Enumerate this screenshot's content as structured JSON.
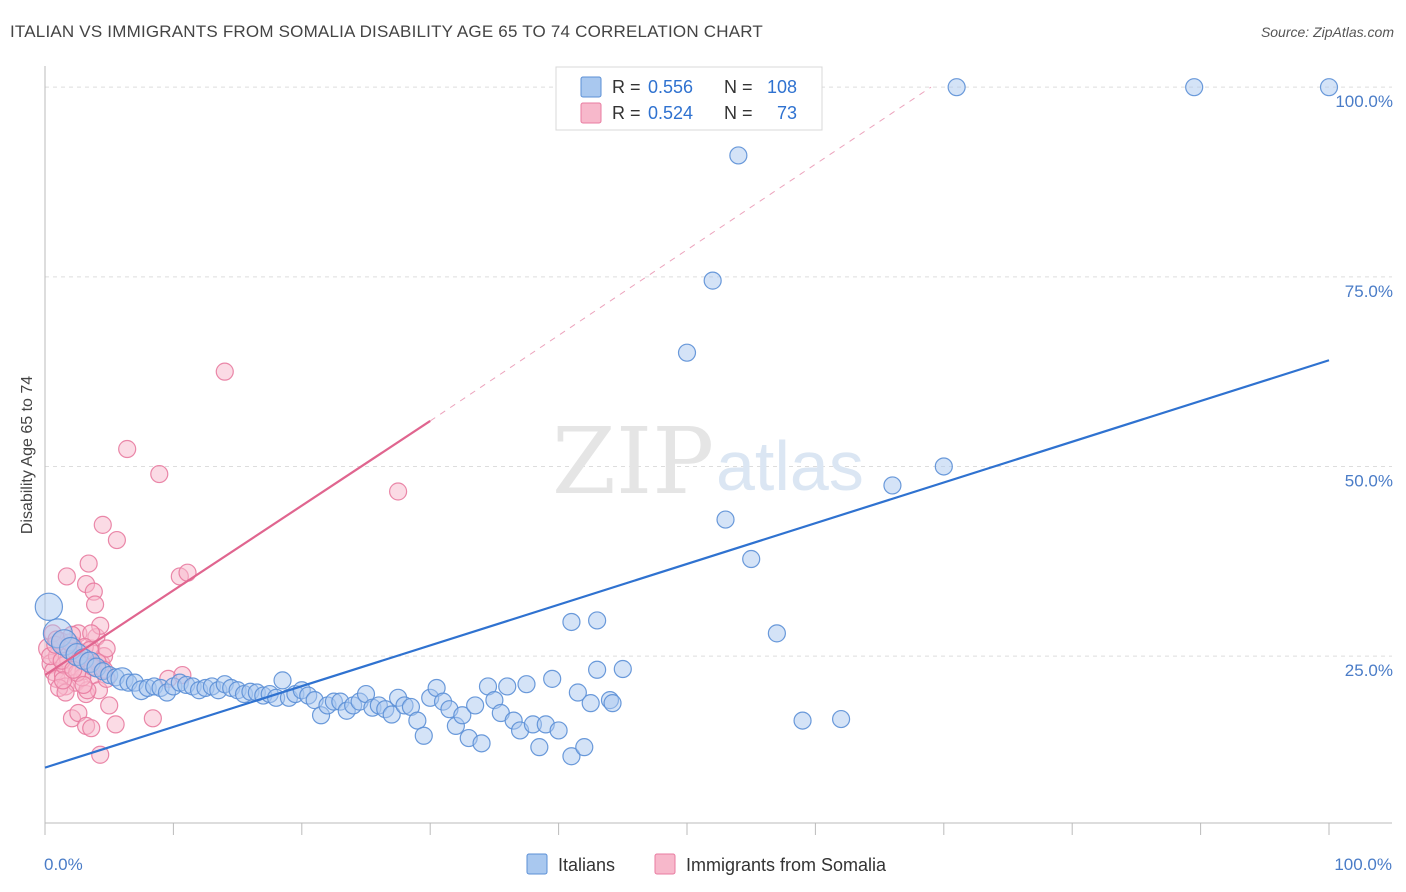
{
  "title": "ITALIAN VS IMMIGRANTS FROM SOMALIA DISABILITY AGE 65 TO 74 CORRELATION CHART",
  "source": "Source: ZipAtlas.com",
  "watermark": {
    "zip": "ZIP",
    "atlas": "atlas"
  },
  "colors": {
    "blue_fill": "#a9c8ef",
    "blue_stroke": "#5b8fd6",
    "blue_line": "#2f72d0",
    "pink_fill": "#f7b8cb",
    "pink_stroke": "#e87ba0",
    "pink_line": "#e0658f",
    "axis_text": "#4a7cc7",
    "grid": "#dddddd"
  },
  "legend": {
    "r_label": "R =",
    "n_label": "N =",
    "rows": [
      {
        "r": "0.556",
        "n": "108",
        "color": "blue"
      },
      {
        "r": "0.524",
        "n": "73",
        "color": "pink"
      }
    ]
  },
  "chart_data": {
    "type": "scatter",
    "title": "ITALIAN VS IMMIGRANTS FROM SOMALIA DISABILITY AGE 65 TO 74 CORRELATION CHART",
    "xlabel": "",
    "ylabel": "Disability Age 65 to 74",
    "xlim": [
      0,
      100
    ],
    "ylim": [
      3,
      102
    ],
    "x_tick_labels": [
      "0.0%",
      "100.0%"
    ],
    "y_ticks": [
      25,
      50,
      75,
      100
    ],
    "y_tick_labels": [
      "25.0%",
      "50.0%",
      "75.0%",
      "100.0%"
    ],
    "grid": true,
    "legend_position": "bottom",
    "series": [
      {
        "name": "Italians",
        "color": "blue",
        "points": [
          [
            0.3,
            31.5,
            1.6
          ],
          [
            1,
            28,
            1.7
          ],
          [
            1.5,
            26.8,
            1.5
          ],
          [
            2,
            26,
            1.3
          ],
          [
            2.5,
            25.2,
            1.3
          ],
          [
            3,
            24.6,
            1.2
          ],
          [
            3.5,
            24.2,
            1.2
          ],
          [
            4,
            23.5,
            1.1
          ],
          [
            4.5,
            23,
            1
          ],
          [
            5,
            22.5,
            1
          ],
          [
            5.5,
            22.2,
            1
          ],
          [
            6,
            22,
            1.3
          ],
          [
            6.5,
            21.5,
            1
          ],
          [
            7,
            21.5,
            1
          ],
          [
            7.5,
            20.5,
            1.1
          ],
          [
            8,
            20.8,
            1
          ],
          [
            8.5,
            21,
            1
          ],
          [
            9,
            20.8,
            1
          ],
          [
            9.5,
            20.2,
            1
          ],
          [
            10,
            21,
            1
          ],
          [
            10.5,
            21.5,
            1
          ],
          [
            11,
            21.2,
            1
          ],
          [
            11.5,
            21,
            1
          ],
          [
            12,
            20.5,
            1
          ],
          [
            12.5,
            20.8,
            1
          ],
          [
            13,
            21,
            1
          ],
          [
            13.5,
            20.5,
            1
          ],
          [
            14,
            21.3,
            1
          ],
          [
            14.5,
            20.8,
            1
          ],
          [
            15,
            20.5,
            1
          ],
          [
            15.5,
            20,
            1
          ],
          [
            16,
            20.3,
            1
          ],
          [
            16.5,
            20.2,
            1
          ],
          [
            17,
            19.8,
            1
          ],
          [
            17.5,
            20,
            1
          ],
          [
            18,
            19.5,
            1
          ],
          [
            18.5,
            21.8,
            1
          ],
          [
            19,
            19.5,
            1
          ],
          [
            19.5,
            20,
            1
          ],
          [
            20,
            20.5,
            1
          ],
          [
            20.5,
            19.8,
            1
          ],
          [
            21,
            19.2,
            1
          ],
          [
            21.5,
            17.2,
            1
          ],
          [
            22,
            18.5,
            1
          ],
          [
            22.5,
            19,
            1
          ],
          [
            23,
            19,
            1
          ],
          [
            23.5,
            17.8,
            1
          ],
          [
            24,
            18.5,
            1
          ],
          [
            24.5,
            19,
            1
          ],
          [
            25,
            20,
            1
          ],
          [
            25.5,
            18.2,
            1
          ],
          [
            26,
            18.5,
            1
          ],
          [
            26.5,
            18,
            1
          ],
          [
            27,
            17.3,
            1
          ],
          [
            27.5,
            19.5,
            1
          ],
          [
            28,
            18.5,
            1
          ],
          [
            28.5,
            18.3,
            1
          ],
          [
            29,
            16.5,
            1
          ],
          [
            29.5,
            14.5,
            1
          ],
          [
            30,
            19.5,
            1
          ],
          [
            30.5,
            20.8,
            1
          ],
          [
            31,
            19,
            1
          ],
          [
            31.5,
            18,
            1
          ],
          [
            32,
            15.8,
            1
          ],
          [
            32.5,
            17.2,
            1
          ],
          [
            33,
            14.2,
            1
          ],
          [
            33.5,
            18.5,
            1
          ],
          [
            34,
            13.5,
            1
          ],
          [
            34.5,
            21,
            1
          ],
          [
            35,
            19.2,
            1
          ],
          [
            35.5,
            17.5,
            1
          ],
          [
            36,
            21,
            1
          ],
          [
            36.5,
            16.5,
            1
          ],
          [
            37,
            15.2,
            1
          ],
          [
            37.5,
            21.3,
            1
          ],
          [
            38,
            16,
            1
          ],
          [
            38.5,
            13,
            1
          ],
          [
            39,
            16,
            1
          ],
          [
            39.5,
            22,
            1
          ],
          [
            40,
            15.2,
            1
          ],
          [
            41,
            11.8,
            1
          ],
          [
            42,
            13,
            1
          ],
          [
            41.5,
            20.2,
            1
          ],
          [
            42.5,
            18.8,
            1
          ],
          [
            43,
            23.2,
            1
          ],
          [
            44,
            19.2,
            1
          ],
          [
            45,
            23.3,
            1
          ],
          [
            44.2,
            18.8,
            1
          ],
          [
            41,
            29.5,
            1
          ],
          [
            43,
            29.7,
            1
          ],
          [
            59,
            16.5,
            1
          ],
          [
            62,
            16.7,
            1
          ],
          [
            53,
            43,
            1
          ],
          [
            55,
            37.8,
            1
          ],
          [
            57,
            28,
            1
          ],
          [
            50,
            65,
            1
          ],
          [
            52,
            74.5,
            1
          ],
          [
            54,
            91,
            1
          ],
          [
            66,
            47.5,
            1
          ],
          [
            70,
            50,
            1
          ],
          [
            71,
            100,
            1
          ],
          [
            89.5,
            100,
            1
          ],
          [
            100,
            100,
            1
          ]
        ],
        "trend": {
          "x": [
            0,
            100
          ],
          "y": [
            10.3,
            64
          ]
        }
      },
      {
        "name": "Immigrants from Somalia",
        "color": "pink",
        "points": [
          [
            0.3,
            26,
            1.2
          ],
          [
            0.5,
            24,
            1.1
          ],
          [
            0.7,
            23,
            1.1
          ],
          [
            0.9,
            22,
            1
          ],
          [
            1,
            25,
            1.1
          ],
          [
            1.2,
            27,
            1
          ],
          [
            1.4,
            22.5,
            1
          ],
          [
            1.6,
            21,
            1
          ],
          [
            1.8,
            24.5,
            1
          ],
          [
            2,
            23.5,
            1
          ],
          [
            2.2,
            26.5,
            1
          ],
          [
            2.4,
            21.5,
            1
          ],
          [
            2.6,
            28,
            1
          ],
          [
            2.8,
            25.5,
            1
          ],
          [
            3,
            23,
            1
          ],
          [
            3.2,
            20,
            1
          ],
          [
            3.4,
            24,
            1
          ],
          [
            3.6,
            26,
            1
          ],
          [
            3.8,
            22.5,
            1
          ],
          [
            4,
            27.5,
            1
          ],
          [
            4.2,
            20.5,
            1
          ],
          [
            4.4,
            24,
            1
          ],
          [
            4.6,
            25,
            1
          ],
          [
            4.8,
            22,
            1
          ],
          [
            1.7,
            35.5,
            1
          ],
          [
            3.2,
            34.5,
            1
          ],
          [
            3.8,
            33.5,
            1
          ],
          [
            3.9,
            31.8,
            1
          ],
          [
            3.4,
            37.2,
            1
          ],
          [
            4.5,
            42.3,
            1
          ],
          [
            5.6,
            40.3,
            1
          ],
          [
            6.4,
            52.3,
            1
          ],
          [
            8.9,
            49,
            1
          ],
          [
            10.5,
            35.5,
            1
          ],
          [
            11.1,
            36,
            1
          ],
          [
            14,
            62.5,
            1
          ],
          [
            27.5,
            46.7,
            1
          ],
          [
            2.1,
            16.8,
            1
          ],
          [
            2.6,
            17.5,
            1
          ],
          [
            3.2,
            15.8,
            1
          ],
          [
            3.6,
            15.5,
            1
          ],
          [
            3.3,
            20.5,
            1
          ],
          [
            4.3,
            12,
            1
          ],
          [
            5.5,
            16,
            1
          ],
          [
            8.4,
            16.8,
            1
          ],
          [
            5,
            18.5,
            1
          ],
          [
            9.6,
            22,
            1
          ],
          [
            10.7,
            22.5,
            1
          ],
          [
            4.8,
            26,
            1
          ],
          [
            4.3,
            29,
            1
          ],
          [
            3.6,
            28,
            1
          ],
          [
            1.1,
            20.8,
            1
          ],
          [
            0.6,
            28,
            1
          ],
          [
            0.4,
            25,
            1
          ],
          [
            2.9,
            22.2,
            1
          ],
          [
            1.5,
            23.8,
            1
          ],
          [
            2.3,
            25.2,
            1
          ],
          [
            3.1,
            26.2,
            1
          ],
          [
            1.9,
            26.8,
            1
          ],
          [
            1.3,
            24.4,
            1
          ],
          [
            0.8,
            26.5,
            1
          ],
          [
            2.7,
            24.6,
            1
          ],
          [
            3.5,
            25.8,
            1
          ],
          [
            4.1,
            24.2,
            1
          ],
          [
            2.5,
            22.8,
            1
          ],
          [
            1.6,
            20.2,
            1
          ],
          [
            3.7,
            23.6,
            1
          ],
          [
            0.9,
            27.2,
            1
          ],
          [
            2.1,
            27.8,
            1
          ],
          [
            4.6,
            23.2,
            1
          ],
          [
            1.4,
            21.8,
            1
          ],
          [
            3,
            21.2,
            1
          ],
          [
            2.2,
            23.2,
            1
          ]
        ],
        "trend": {
          "x": [
            0,
            30
          ],
          "y": [
            22.5,
            56
          ]
        },
        "trend_dashed": {
          "x": [
            30,
            69
          ],
          "y": [
            56,
            100
          ]
        }
      }
    ]
  }
}
